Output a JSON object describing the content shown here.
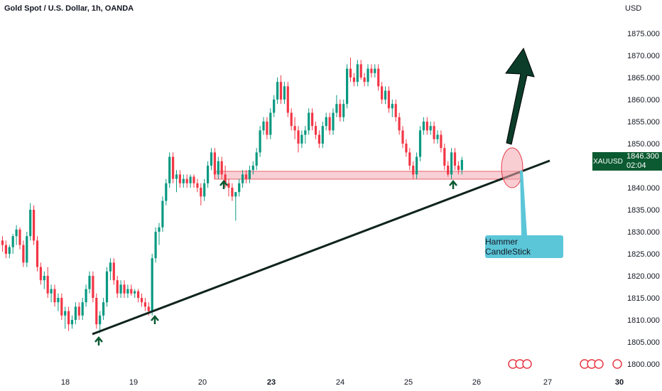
{
  "header": {
    "title": "Gold Spot / U.S. Dollar, 1h, OANDA",
    "currency": "USD"
  },
  "price_tag": {
    "symbol": "XAUUSD",
    "price": "1846.300",
    "countdown": "02:04"
  },
  "callout": {
    "text": "Hammer CandleStick"
  },
  "colors": {
    "up": "#089981",
    "down": "#f23645",
    "zone_fill": "#f7c6cc",
    "zone_stroke": "#e53945",
    "trendline": "#0f241b",
    "arrow": "#0b3d2a",
    "callout": "#5bc6d8",
    "price_tag": "#0b5a31"
  },
  "chart_data": {
    "type": "candlestick",
    "title": "Gold Spot / U.S. Dollar, 1h, OANDA",
    "ylabel": "USD",
    "ylim": [
      1797,
      1880
    ],
    "y_ticks": [
      "1875.000",
      "1870.000",
      "1865.000",
      "1860.000",
      "1855.000",
      "1850.000",
      "1845.000",
      "1840.000",
      "1835.000",
      "1830.000",
      "1825.000",
      "1820.000",
      "1815.000",
      "1810.000",
      "1805.000",
      "1800.000"
    ],
    "x_ticks": [
      "18",
      "19",
      "20",
      "23",
      "24",
      "25",
      "26",
      "27",
      "30"
    ],
    "x_ticks_bold": [
      "23",
      "30"
    ],
    "bars_per_day": 24,
    "ohlc": [
      [
        1828.0,
        1829.0,
        1825.5,
        1827.0
      ],
      [
        1827.0,
        1828.0,
        1824.0,
        1825.0
      ],
      [
        1825.0,
        1827.0,
        1824.0,
        1826.5
      ],
      [
        1826.5,
        1829.5,
        1825.0,
        1829.0
      ],
      [
        1829.0,
        1831.5,
        1827.0,
        1830.5
      ],
      [
        1830.5,
        1831.0,
        1826.0,
        1827.0
      ],
      [
        1827.0,
        1828.0,
        1822.0,
        1823.0
      ],
      [
        1823.0,
        1830.0,
        1822.0,
        1829.0
      ],
      [
        1829.0,
        1836.5,
        1828.0,
        1835.0
      ],
      [
        1835.0,
        1836.0,
        1827.0,
        1828.0
      ],
      [
        1828.0,
        1829.0,
        1821.0,
        1822.0
      ],
      [
        1822.0,
        1823.0,
        1818.0,
        1819.0
      ],
      [
        1819.0,
        1821.0,
        1817.0,
        1820.0
      ],
      [
        1820.0,
        1822.0,
        1815.0,
        1816.0
      ],
      [
        1816.0,
        1818.0,
        1814.0,
        1817.0
      ],
      [
        1817.0,
        1818.0,
        1813.0,
        1814.0
      ],
      [
        1814.0,
        1816.0,
        1812.0,
        1815.0
      ],
      [
        1815.0,
        1816.0,
        1810.0,
        1811.0
      ],
      [
        1811.0,
        1813.0,
        1808.0,
        1812.0
      ],
      [
        1812.0,
        1813.0,
        1807.5,
        1809.0
      ],
      [
        1809.0,
        1811.0,
        1808.0,
        1810.0
      ],
      [
        1810.0,
        1814.0,
        1809.0,
        1813.0
      ],
      [
        1813.0,
        1814.0,
        1810.0,
        1811.0
      ],
      [
        1811.0,
        1815.0,
        1810.0,
        1814.0
      ],
      [
        1814.0,
        1818.0,
        1813.0,
        1817.0
      ],
      [
        1817.0,
        1821.0,
        1816.0,
        1820.0
      ],
      [
        1820.0,
        1821.0,
        1814.0,
        1815.0
      ],
      [
        1815.0,
        1816.0,
        1808.0,
        1809.0
      ],
      [
        1809.0,
        1812.0,
        1807.0,
        1811.0
      ],
      [
        1811.0,
        1815.0,
        1810.0,
        1814.0
      ],
      [
        1814.0,
        1822.0,
        1813.0,
        1821.0
      ],
      [
        1821.0,
        1824.0,
        1819.0,
        1823.0
      ],
      [
        1823.0,
        1824.0,
        1818.0,
        1819.0
      ],
      [
        1819.0,
        1820.0,
        1815.0,
        1816.0
      ],
      [
        1816.0,
        1819.0,
        1815.0,
        1818.0
      ],
      [
        1818.0,
        1819.0,
        1815.0,
        1816.0
      ],
      [
        1816.0,
        1818.0,
        1815.0,
        1817.0
      ],
      [
        1817.0,
        1818.0,
        1815.5,
        1816.0
      ],
      [
        1816.0,
        1817.0,
        1815.0,
        1816.5
      ],
      [
        1816.5,
        1817.0,
        1814.0,
        1815.0
      ],
      [
        1815.0,
        1816.0,
        1813.0,
        1814.0
      ],
      [
        1814.0,
        1815.0,
        1812.0,
        1813.0
      ],
      [
        1813.0,
        1814.0,
        1811.0,
        1812.0
      ],
      [
        1812.0,
        1825.0,
        1811.0,
        1824.0
      ],
      [
        1824.0,
        1831.0,
        1823.0,
        1830.0
      ],
      [
        1830.0,
        1832.0,
        1827.0,
        1831.0
      ],
      [
        1831.0,
        1838.0,
        1830.0,
        1837.0
      ],
      [
        1837.0,
        1842.0,
        1836.0,
        1841.0
      ],
      [
        1841.0,
        1848.0,
        1840.0,
        1847.0
      ],
      [
        1847.0,
        1848.0,
        1841.0,
        1842.0
      ],
      [
        1842.0,
        1844.0,
        1839.0,
        1843.0
      ],
      [
        1843.0,
        1844.0,
        1840.0,
        1841.0
      ],
      [
        1841.0,
        1843.0,
        1840.0,
        1842.0
      ],
      [
        1842.0,
        1843.0,
        1840.0,
        1841.0
      ],
      [
        1841.0,
        1843.0,
        1840.0,
        1842.5
      ],
      [
        1842.5,
        1843.0,
        1840.0,
        1841.0
      ],
      [
        1841.0,
        1842.0,
        1839.0,
        1840.0
      ],
      [
        1840.0,
        1841.0,
        1836.0,
        1838.0
      ],
      [
        1838.0,
        1842.0,
        1837.0,
        1841.0
      ],
      [
        1841.0,
        1846.0,
        1840.0,
        1845.0
      ],
      [
        1845.0,
        1849.0,
        1844.0,
        1848.0
      ],
      [
        1848.0,
        1849.0,
        1842.0,
        1843.0
      ],
      [
        1843.0,
        1847.0,
        1842.0,
        1846.0
      ],
      [
        1846.0,
        1847.0,
        1842.0,
        1843.0
      ],
      [
        1843.0,
        1845.0,
        1840.0,
        1841.0
      ],
      [
        1841.0,
        1842.0,
        1838.0,
        1840.0
      ],
      [
        1840.0,
        1841.0,
        1837.0,
        1838.0
      ],
      [
        1838.0,
        1839.0,
        1832.5,
        1839.0
      ],
      [
        1839.0,
        1842.0,
        1838.0,
        1841.0
      ],
      [
        1841.0,
        1844.0,
        1840.0,
        1843.0
      ],
      [
        1843.0,
        1844.0,
        1841.0,
        1842.0
      ],
      [
        1842.0,
        1845.0,
        1841.0,
        1844.0
      ],
      [
        1844.0,
        1846.0,
        1843.0,
        1845.0
      ],
      [
        1845.0,
        1849.0,
        1844.0,
        1848.0
      ],
      [
        1848.0,
        1854.0,
        1847.0,
        1853.0
      ],
      [
        1853.0,
        1856.0,
        1852.0,
        1855.0
      ],
      [
        1855.0,
        1856.0,
        1851.0,
        1852.0
      ],
      [
        1852.0,
        1858.0,
        1851.0,
        1857.0
      ],
      [
        1857.0,
        1861.0,
        1856.0,
        1860.0
      ],
      [
        1860.0,
        1865.0,
        1859.0,
        1864.0
      ],
      [
        1864.0,
        1865.5,
        1859.0,
        1860.0
      ],
      [
        1860.0,
        1864.0,
        1859.0,
        1863.0
      ],
      [
        1863.0,
        1864.0,
        1856.0,
        1857.0
      ],
      [
        1857.0,
        1858.0,
        1853.0,
        1854.0
      ],
      [
        1854.0,
        1856.0,
        1851.0,
        1853.0
      ],
      [
        1853.0,
        1854.0,
        1848.0,
        1850.0
      ],
      [
        1850.0,
        1853.0,
        1849.0,
        1852.0
      ],
      [
        1852.0,
        1854.0,
        1850.0,
        1853.0
      ],
      [
        1853.0,
        1858.0,
        1852.0,
        1857.0
      ],
      [
        1857.0,
        1858.0,
        1853.0,
        1854.0
      ],
      [
        1854.0,
        1855.0,
        1851.0,
        1852.0
      ],
      [
        1852.0,
        1853.0,
        1849.0,
        1850.0
      ],
      [
        1850.0,
        1855.0,
        1849.0,
        1854.0
      ],
      [
        1854.0,
        1857.0,
        1853.0,
        1856.0
      ],
      [
        1856.0,
        1857.0,
        1852.0,
        1853.0
      ],
      [
        1853.0,
        1858.0,
        1852.0,
        1857.0
      ],
      [
        1857.0,
        1861.0,
        1856.0,
        1859.0
      ],
      [
        1859.0,
        1860.0,
        1855.0,
        1856.0
      ],
      [
        1856.0,
        1860.0,
        1855.0,
        1859.0
      ],
      [
        1859.0,
        1868.0,
        1858.0,
        1867.0
      ],
      [
        1867.0,
        1869.5,
        1864.0,
        1865.0
      ],
      [
        1865.0,
        1866.0,
        1863.0,
        1864.0
      ],
      [
        1864.0,
        1869.0,
        1863.0,
        1868.0
      ],
      [
        1868.0,
        1869.0,
        1864.5,
        1865.0
      ],
      [
        1865.0,
        1866.0,
        1863.0,
        1864.0
      ],
      [
        1864.0,
        1868.0,
        1863.0,
        1867.0
      ],
      [
        1867.0,
        1868.0,
        1865.0,
        1866.0
      ],
      [
        1866.0,
        1868.0,
        1865.0,
        1867.0
      ],
      [
        1867.0,
        1868.0,
        1862.0,
        1863.0
      ],
      [
        1863.0,
        1864.0,
        1859.0,
        1860.0
      ],
      [
        1860.0,
        1863.0,
        1859.0,
        1862.0
      ],
      [
        1862.0,
        1863.0,
        1857.0,
        1858.0
      ],
      [
        1858.0,
        1860.0,
        1856.0,
        1859.0
      ],
      [
        1859.0,
        1860.0,
        1855.0,
        1856.0
      ],
      [
        1856.0,
        1857.0,
        1852.0,
        1853.0
      ],
      [
        1853.0,
        1854.0,
        1849.0,
        1850.0
      ],
      [
        1850.0,
        1851.0,
        1847.0,
        1848.0
      ],
      [
        1848.0,
        1849.0,
        1844.0,
        1845.0
      ],
      [
        1845.0,
        1846.0,
        1842.0,
        1843.0
      ],
      [
        1843.0,
        1848.0,
        1842.0,
        1847.0
      ],
      [
        1847.0,
        1854.0,
        1846.0,
        1853.0
      ],
      [
        1853.0,
        1856.0,
        1852.0,
        1855.0
      ],
      [
        1855.0,
        1856.0,
        1852.0,
        1853.0
      ],
      [
        1853.0,
        1855.0,
        1852.0,
        1854.0
      ],
      [
        1854.0,
        1855.0,
        1850.0,
        1851.0
      ],
      [
        1851.0,
        1853.0,
        1850.0,
        1852.0
      ],
      [
        1852.0,
        1853.0,
        1848.0,
        1849.0
      ],
      [
        1849.0,
        1850.0,
        1844.0,
        1845.0
      ],
      [
        1845.0,
        1846.0,
        1842.5,
        1843.0
      ],
      [
        1843.0,
        1849.0,
        1842.0,
        1848.0
      ],
      [
        1848.0,
        1849.0,
        1844.0,
        1845.0
      ],
      [
        1845.0,
        1846.0,
        1843.0,
        1844.0
      ],
      [
        1844.0,
        1847.0,
        1843.0,
        1846.3
      ]
    ]
  }
}
